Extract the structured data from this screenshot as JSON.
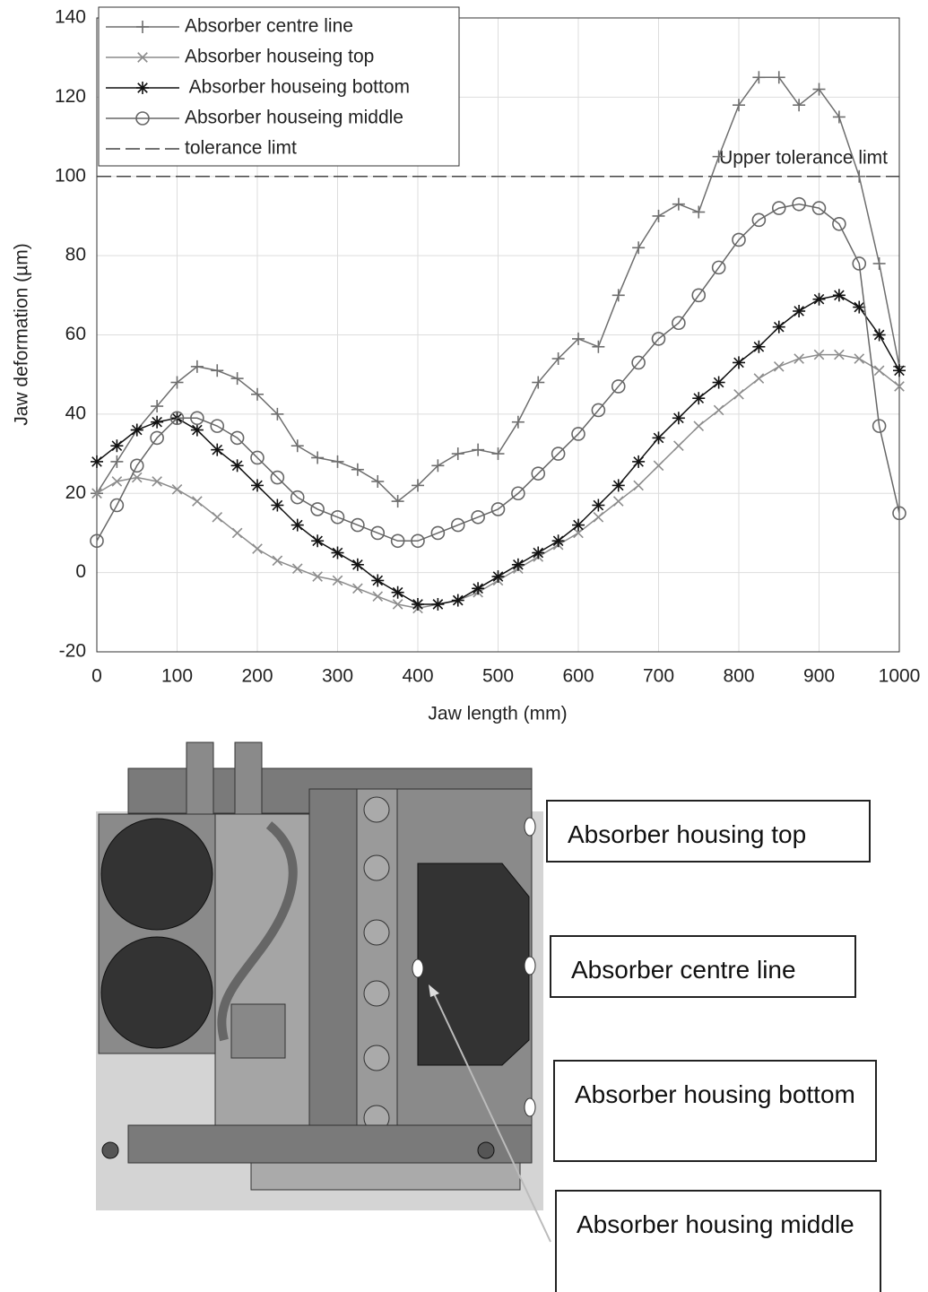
{
  "chart_data": {
    "type": "line",
    "x_label": "Jaw length (mm)",
    "y_label": "Jaw deformation (µm)",
    "x": [
      0,
      25,
      50,
      75,
      100,
      125,
      150,
      175,
      200,
      225,
      250,
      275,
      300,
      325,
      350,
      375,
      400,
      425,
      450,
      475,
      500,
      525,
      550,
      575,
      600,
      625,
      650,
      675,
      700,
      725,
      750,
      775,
      800,
      825,
      850,
      875,
      900,
      925,
      950,
      975,
      1000
    ],
    "series": [
      {
        "name": "Absorber centre line",
        "color": "#6e6e6e",
        "marker": "+",
        "values": [
          20,
          28,
          36,
          42,
          48,
          52,
          51,
          49,
          45,
          40,
          32,
          29,
          28,
          26,
          23,
          18,
          22,
          27,
          30,
          31,
          30,
          38,
          48,
          54,
          59,
          57,
          70,
          82,
          90,
          93,
          91,
          105,
          118,
          125,
          125,
          118,
          122,
          115,
          100,
          78,
          52
        ]
      },
      {
        "name": "Absorber houseing top",
        "color": "#8c8c8c",
        "marker": "x",
        "values": [
          20,
          23,
          24,
          23,
          21,
          18,
          14,
          10,
          6,
          3,
          1,
          -1,
          -2,
          -4,
          -6,
          -8,
          -9,
          -8,
          -7,
          -5,
          -2,
          1,
          4,
          7,
          10,
          14,
          18,
          22,
          27,
          32,
          37,
          41,
          45,
          49,
          52,
          54,
          55,
          55,
          54,
          51,
          47
        ]
      },
      {
        "name": " Absorber houseing bottom",
        "color": "#111111",
        "marker": "*",
        "values": [
          28,
          32,
          36,
          38,
          39,
          36,
          31,
          27,
          22,
          17,
          12,
          8,
          5,
          2,
          -2,
          -5,
          -8,
          -8,
          -7,
          -4,
          -1,
          2,
          5,
          8,
          12,
          17,
          22,
          28,
          34,
          39,
          44,
          48,
          53,
          57,
          62,
          66,
          69,
          70,
          67,
          60,
          51
        ]
      },
      {
        "name": "Absorber houseing middle",
        "color": "#666666",
        "marker": "o",
        "values": [
          8,
          17,
          27,
          34,
          39,
          39,
          37,
          34,
          29,
          24,
          19,
          16,
          14,
          12,
          10,
          8,
          8,
          10,
          12,
          14,
          16,
          20,
          25,
          30,
          35,
          41,
          47,
          53,
          59,
          63,
          70,
          77,
          84,
          89,
          92,
          93,
          92,
          88,
          78,
          37,
          15
        ]
      }
    ],
    "tolerance": {
      "name": "tolerance limt",
      "value": 100,
      "label": "Upper tolerance limt",
      "color": "#444444"
    },
    "xlim": [
      0,
      1000
    ],
    "ylim": [
      -20,
      140
    ],
    "xticks": [
      0,
      100,
      200,
      300,
      400,
      500,
      600,
      700,
      800,
      900,
      1000
    ],
    "yticks": [
      -20,
      0,
      20,
      40,
      60,
      80,
      100,
      120,
      140
    ],
    "grid": true,
    "legend": "upper left"
  },
  "diagram": {
    "labels": [
      "Absorber housing top",
      "Absorber centre line",
      "Absorber housing bottom",
      "Absorber housing middle"
    ]
  }
}
